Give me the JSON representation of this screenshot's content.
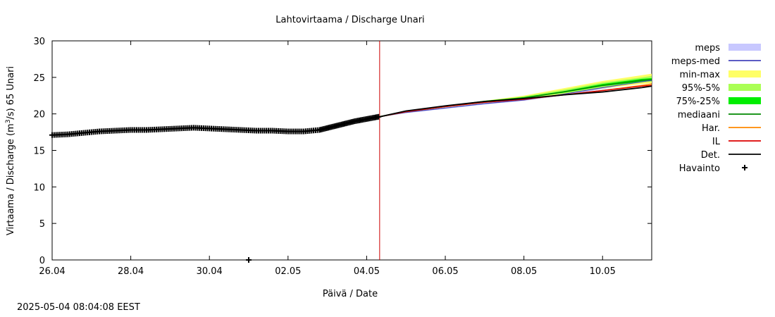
{
  "chart_data": {
    "type": "line",
    "title": "Lahtovirtaama / Discharge  Unari",
    "xlabel": "Päivä / Date",
    "ylabel": {
      "prefix": "Virtaama / Discharge (m",
      "superscript": "3",
      "suffix": "/s)  65 Unari"
    },
    "x_unit": "days since 26.04",
    "xlim": [
      0,
      15.25
    ],
    "ylim": [
      0,
      30
    ],
    "y_ticks": [
      0,
      5,
      10,
      15,
      20,
      25,
      30
    ],
    "x_ticks": [
      {
        "label": "26.04",
        "x": 0
      },
      {
        "label": "28.04",
        "x": 2
      },
      {
        "label": "30.04",
        "x": 4
      },
      {
        "label": "02.05",
        "x": 6
      },
      {
        "label": "04.05",
        "x": 8
      },
      {
        "label": "06.05",
        "x": 10
      },
      {
        "label": "08.05",
        "x": 12
      },
      {
        "label": "10.05",
        "x": 14
      }
    ],
    "forecast_start_x": 8.33,
    "observation_outlier": {
      "x": 5.0,
      "y": 0
    },
    "observations": {
      "x": [
        0,
        0.4,
        0.8,
        1.2,
        1.6,
        2.0,
        2.4,
        2.8,
        3.2,
        3.6,
        4.0,
        4.4,
        4.8,
        5.2,
        5.6,
        6.0,
        6.4,
        6.8,
        7.1,
        7.4,
        7.7,
        8.0,
        8.3
      ],
      "y": [
        17.1,
        17.2,
        17.4,
        17.6,
        17.7,
        17.8,
        17.8,
        17.9,
        18.0,
        18.1,
        18.0,
        17.9,
        17.8,
        17.7,
        17.7,
        17.6,
        17.6,
        17.8,
        18.2,
        18.6,
        19.0,
        19.3,
        19.6
      ]
    },
    "forecast_x": [
      8.33,
      9,
      10,
      11,
      12,
      13,
      14,
      15,
      15.25
    ],
    "bands": [
      {
        "name": "meps",
        "color": "#c8c8ff",
        "low": [
          19.6,
          20.1,
          20.7,
          21.3,
          21.8,
          22.5,
          23.4,
          24.2,
          24.4
        ],
        "high": [
          19.7,
          20.3,
          20.9,
          21.5,
          22.2,
          23.1,
          24.1,
          25.0,
          25.2
        ]
      },
      {
        "name": "min-max",
        "color": "#ffff66",
        "low": [
          19.6,
          20.2,
          20.9,
          21.5,
          22.0,
          22.7,
          23.5,
          24.1,
          24.2
        ],
        "high": [
          19.7,
          20.4,
          21.1,
          21.8,
          22.5,
          23.5,
          24.5,
          25.3,
          25.5
        ]
      },
      {
        "name": "95%-5%",
        "color": "#aaff55",
        "low": [
          19.6,
          20.2,
          21.0,
          21.6,
          22.1,
          22.8,
          23.6,
          24.3,
          24.4
        ],
        "high": [
          19.7,
          20.4,
          21.1,
          21.7,
          22.4,
          23.3,
          24.3,
          25.0,
          25.2
        ]
      },
      {
        "name": "75%-25%",
        "color": "#00ee00",
        "low": [
          19.6,
          20.3,
          21.0,
          21.7,
          22.2,
          22.9,
          23.8,
          24.4,
          24.5
        ],
        "high": [
          19.7,
          20.3,
          21.1,
          21.8,
          22.3,
          23.1,
          24.1,
          24.8,
          24.9
        ]
      }
    ],
    "series": [
      {
        "name": "meps-med",
        "color": "#4444bb",
        "width": 1.2,
        "values": [
          19.6,
          20.2,
          20.8,
          21.4,
          21.9,
          22.7,
          23.6,
          24.4,
          24.6
        ]
      },
      {
        "name": "mediaani",
        "color": "#008800",
        "width": 1.5,
        "values": [
          19.6,
          20.3,
          21.0,
          21.7,
          22.2,
          23.0,
          23.9,
          24.6,
          24.7
        ]
      },
      {
        "name": "Har.",
        "color": "#ff8800",
        "width": 1.5,
        "values": [
          19.6,
          20.3,
          21.0,
          21.6,
          22.0,
          22.6,
          23.2,
          23.9,
          24.1
        ]
      },
      {
        "name": "IL",
        "color": "#dd0000",
        "width": 1.5,
        "values": [
          19.6,
          20.3,
          21.0,
          21.6,
          22.0,
          22.6,
          23.2,
          23.8,
          23.9
        ]
      },
      {
        "name": "Det.",
        "color": "#000000",
        "width": 1.8,
        "values": [
          19.6,
          20.4,
          21.1,
          21.7,
          22.1,
          22.6,
          23.0,
          23.6,
          23.8
        ]
      }
    ],
    "legend": {
      "placement": "right",
      "entries": [
        {
          "label": "meps",
          "kind": "band",
          "color": "#c8c8ff"
        },
        {
          "label": "meps-med",
          "kind": "line",
          "color": "#4444bb"
        },
        {
          "label": "min-max",
          "kind": "band",
          "color": "#ffff66"
        },
        {
          "label": "95%-5%",
          "kind": "band",
          "color": "#aaff55"
        },
        {
          "label": "75%-25%",
          "kind": "band",
          "color": "#00ee00"
        },
        {
          "label": "mediaani",
          "kind": "line",
          "color": "#008800"
        },
        {
          "label": "Har.",
          "kind": "line",
          "color": "#ff8800"
        },
        {
          "label": "IL",
          "kind": "line",
          "color": "#dd0000"
        },
        {
          "label": "Det.",
          "kind": "line",
          "color": "#000000"
        },
        {
          "label": "Havainto",
          "kind": "point",
          "color": "#000000"
        }
      ]
    }
  },
  "footer": {
    "timestamp": "2025-05-04 08:04:08 EEST"
  }
}
